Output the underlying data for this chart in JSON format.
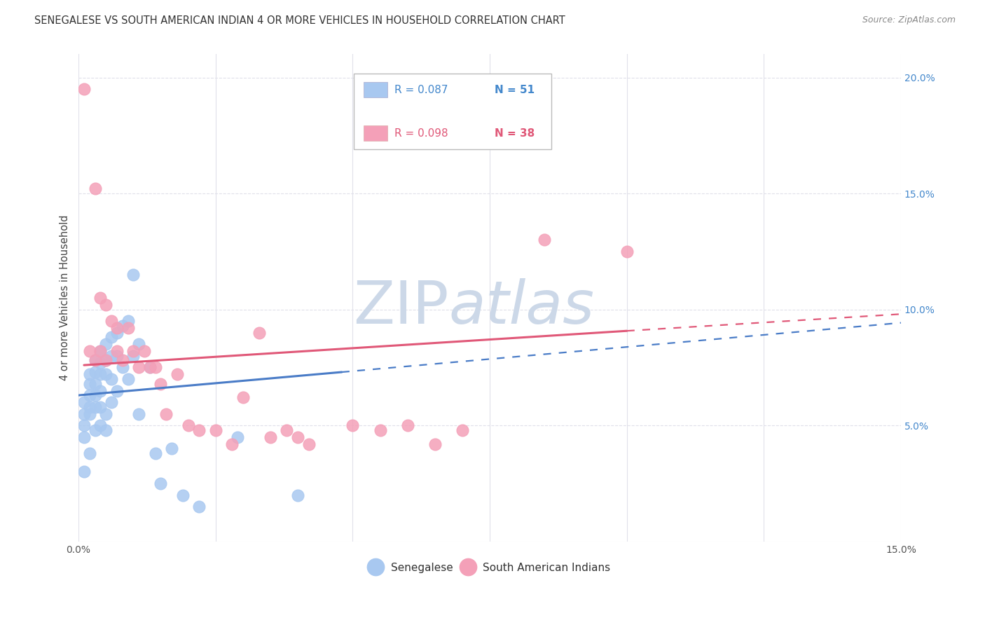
{
  "title": "SENEGALESE VS SOUTH AMERICAN INDIAN 4 OR MORE VEHICLES IN HOUSEHOLD CORRELATION CHART",
  "source": "Source: ZipAtlas.com",
  "ylabel": "4 or more Vehicles in Household",
  "xlim": [
    0.0,
    0.15
  ],
  "ylim": [
    0.0,
    0.21
  ],
  "xticks": [
    0.0,
    0.025,
    0.05,
    0.075,
    0.1,
    0.125,
    0.15
  ],
  "yticks": [
    0.0,
    0.05,
    0.1,
    0.15,
    0.2
  ],
  "senegalese_R": 0.087,
  "senegalese_N": 51,
  "sai_R": 0.098,
  "sai_N": 38,
  "senegalese_color": "#a8c8f0",
  "sai_color": "#f4a0b8",
  "senegalese_line_color": "#4a7cc7",
  "sai_line_color": "#e05878",
  "watermark_color": "#ccd8e8",
  "background_color": "#ffffff",
  "grid_color": "#e0e0ea",
  "senegalese_x": [
    0.001,
    0.001,
    0.001,
    0.001,
    0.001,
    0.002,
    0.002,
    0.002,
    0.002,
    0.002,
    0.002,
    0.003,
    0.003,
    0.003,
    0.003,
    0.003,
    0.003,
    0.004,
    0.004,
    0.004,
    0.004,
    0.004,
    0.004,
    0.005,
    0.005,
    0.005,
    0.005,
    0.005,
    0.006,
    0.006,
    0.006,
    0.006,
    0.007,
    0.007,
    0.007,
    0.008,
    0.008,
    0.009,
    0.009,
    0.01,
    0.01,
    0.011,
    0.011,
    0.013,
    0.014,
    0.015,
    0.017,
    0.019,
    0.022,
    0.029,
    0.04
  ],
  "senegalese_y": [
    0.06,
    0.055,
    0.05,
    0.045,
    0.03,
    0.072,
    0.068,
    0.063,
    0.058,
    0.055,
    0.038,
    0.078,
    0.073,
    0.068,
    0.063,
    0.058,
    0.048,
    0.082,
    0.077,
    0.072,
    0.065,
    0.058,
    0.05,
    0.085,
    0.078,
    0.072,
    0.055,
    0.048,
    0.088,
    0.08,
    0.07,
    0.06,
    0.09,
    0.08,
    0.065,
    0.093,
    0.075,
    0.095,
    0.07,
    0.115,
    0.08,
    0.085,
    0.055,
    0.075,
    0.038,
    0.025,
    0.04,
    0.02,
    0.015,
    0.045,
    0.02
  ],
  "sai_x": [
    0.001,
    0.002,
    0.003,
    0.003,
    0.004,
    0.004,
    0.005,
    0.005,
    0.006,
    0.007,
    0.007,
    0.008,
    0.009,
    0.01,
    0.011,
    0.012,
    0.013,
    0.014,
    0.015,
    0.016,
    0.018,
    0.02,
    0.022,
    0.025,
    0.028,
    0.03,
    0.033,
    0.035,
    0.038,
    0.04,
    0.042,
    0.05,
    0.055,
    0.06,
    0.065,
    0.07,
    0.085,
    0.1
  ],
  "sai_y": [
    0.195,
    0.082,
    0.152,
    0.078,
    0.105,
    0.082,
    0.102,
    0.078,
    0.095,
    0.092,
    0.082,
    0.078,
    0.092,
    0.082,
    0.075,
    0.082,
    0.075,
    0.075,
    0.068,
    0.055,
    0.072,
    0.05,
    0.048,
    0.048,
    0.042,
    0.062,
    0.09,
    0.045,
    0.048,
    0.045,
    0.042,
    0.05,
    0.048,
    0.05,
    0.042,
    0.048,
    0.13,
    0.125
  ],
  "sen_line_x0": 0.0,
  "sen_line_y0": 0.063,
  "sen_line_x1": 0.048,
  "sen_line_y1": 0.073,
  "sai_line_x0": 0.001,
  "sai_line_y0": 0.076,
  "sai_line_x1": 0.15,
  "sai_line_y1": 0.098
}
